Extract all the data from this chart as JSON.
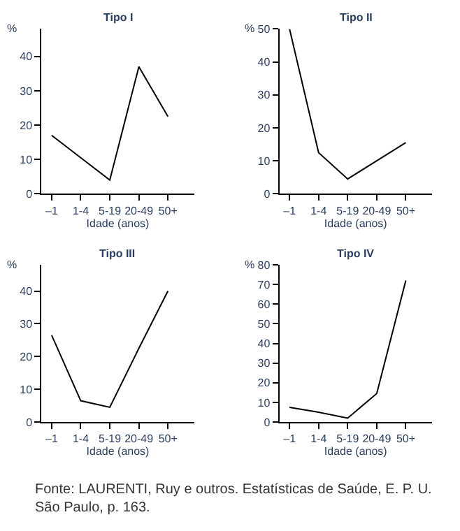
{
  "chart_data": [
    {
      "type": "line",
      "title": "Tipo I",
      "xlabel": "Idade (anos)",
      "ylabel": "%",
      "categories": [
        "–1",
        "1-4",
        "5-19",
        "20-49",
        "50+"
      ],
      "series": [
        {
          "color": "#000000",
          "values": [
            17,
            10.5,
            4,
            37,
            22.5
          ]
        }
      ],
      "ylim": [
        0,
        48
      ],
      "yticks": [
        0,
        10,
        20,
        30,
        40
      ],
      "marker": "none",
      "line_style": "solid"
    },
    {
      "type": "line",
      "title": "Tipo II",
      "xlabel": "Idade (anos)",
      "ylabel": "%",
      "categories": [
        "–1",
        "1-4",
        "5-19",
        "20-49",
        "50+"
      ],
      "series": [
        {
          "color": "#000000",
          "values": [
            50,
            12.5,
            4.5,
            10,
            15.5
          ]
        }
      ],
      "ylim": [
        0,
        50
      ],
      "yticks": [
        0,
        10,
        20,
        30,
        40,
        50
      ],
      "marker": "none",
      "line_style": "solid"
    },
    {
      "type": "line",
      "title": "Tipo III",
      "xlabel": "Idade (anos)",
      "ylabel": "%",
      "categories": [
        "–1",
        "1-4",
        "5-19",
        "20-49",
        "50+"
      ],
      "series": [
        {
          "color": "#000000",
          "values": [
            26.5,
            6.5,
            4.5,
            22.5,
            40
          ]
        }
      ],
      "ylim": [
        0,
        48
      ],
      "yticks": [
        0,
        10,
        20,
        30,
        40
      ],
      "marker": "none",
      "line_style": "solid"
    },
    {
      "type": "line",
      "title": "Tipo IV",
      "xlabel": "Idade (anos)",
      "ylabel": "%",
      "categories": [
        "–1",
        "1-4",
        "5-19",
        "20-49",
        "50+"
      ],
      "series": [
        {
          "color": "#000000",
          "values": [
            7.5,
            5,
            2,
            14.5,
            72
          ]
        }
      ],
      "ylim": [
        0,
        80
      ],
      "yticks": [
        0,
        10,
        20,
        30,
        40,
        50,
        60,
        70,
        80
      ],
      "marker": "none",
      "line_style": "solid",
      "annotations": [
        "Fonte: LAURENTI, Ruy e outros. Estatísticas de Saúde, E. P. U. São Paulo, p. 163."
      ]
    }
  ]
}
